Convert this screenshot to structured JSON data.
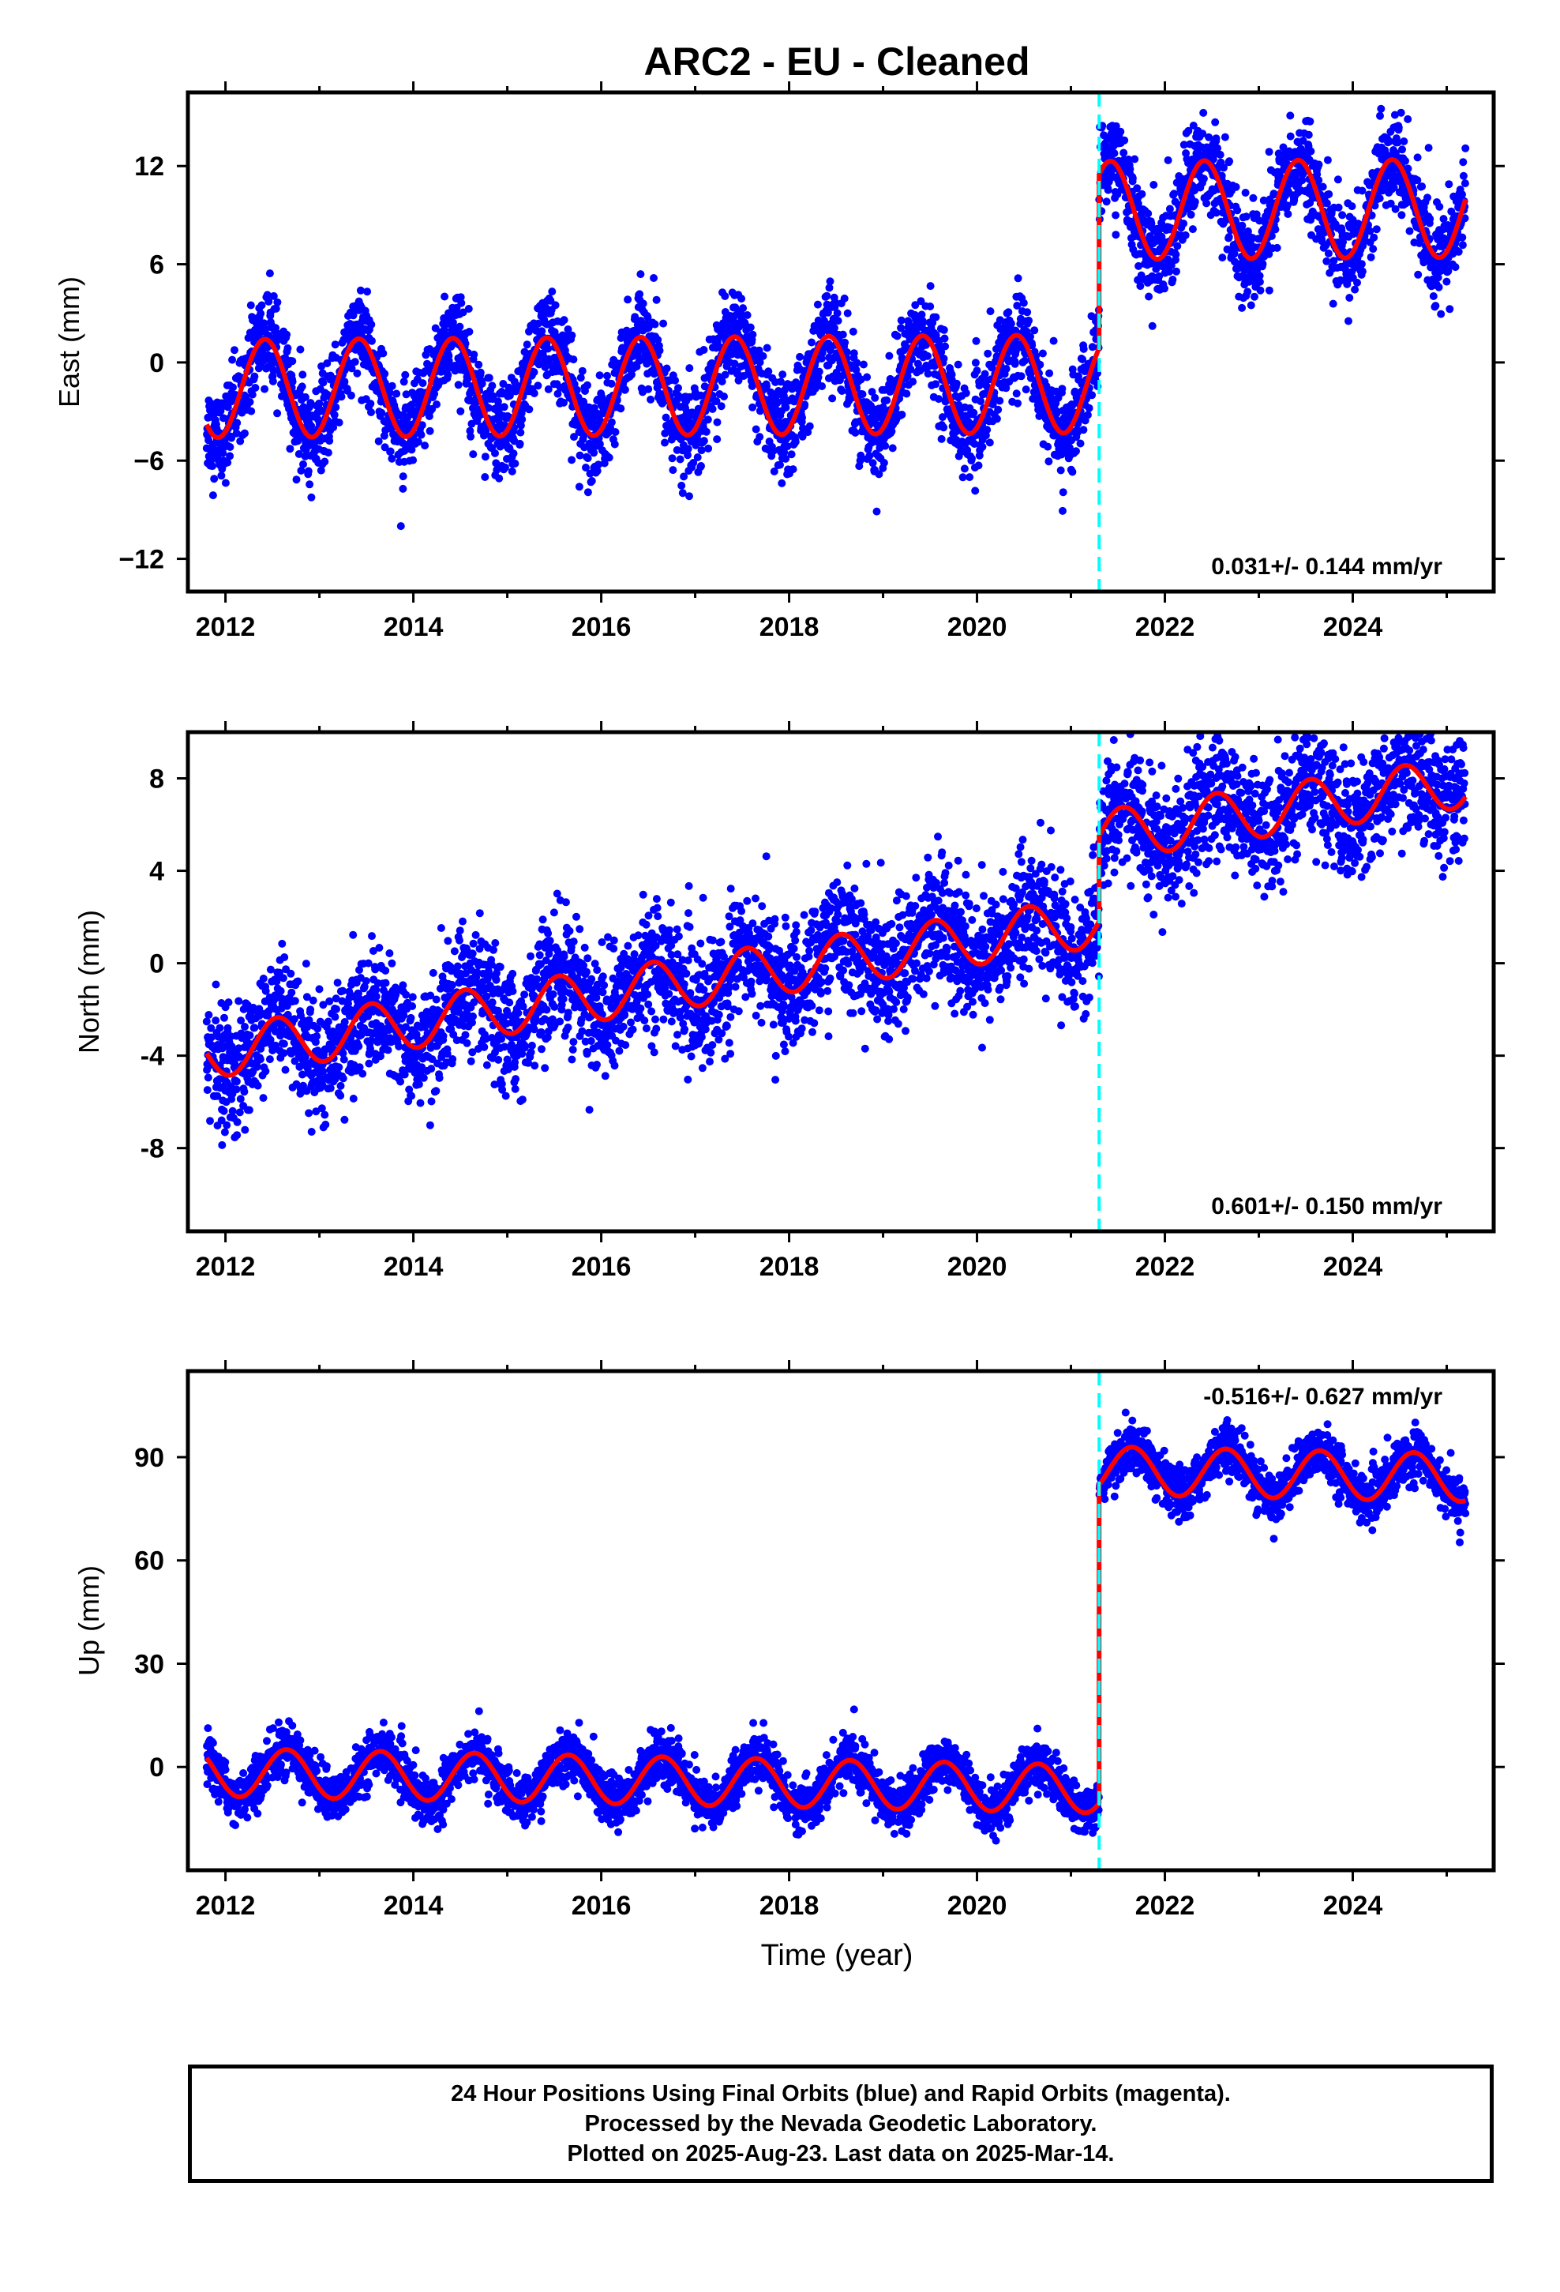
{
  "title": "ARC2  - EU - Cleaned",
  "xlabel": "Time (year)",
  "caption": [
    "24 Hour Positions Using Final Orbits (blue) and Rapid Orbits (magenta).",
    "Processed by the Nevada Geodetic Laboratory.",
    "Plotted on 2025-Aug-23. Last data on 2025-Mar-14."
  ],
  "colors": {
    "points": "#0000ff",
    "model": "#ff0000",
    "offset_marker": "#00ffff",
    "frame": "#000000"
  },
  "chart_data": [
    {
      "type": "scatter",
      "component": "east",
      "ylabel": "East (mm)",
      "rate_label": "0.031+/- 0.144 mm/yr",
      "xlim": [
        2011.6,
        2025.5
      ],
      "ylim": [
        -14,
        16.5
      ],
      "x_ticks": [
        2012,
        2014,
        2016,
        2018,
        2020,
        2022,
        2024
      ],
      "y_ticks": [
        -12,
        -6,
        0,
        6,
        12
      ],
      "y_tick_labels": [
        "−12",
        "−6",
        "0",
        "6",
        "12"
      ],
      "data_start": 2011.8,
      "data_end": 2025.2,
      "offset_epoch": 2021.3,
      "model": {
        "pre_offset": -1.6,
        "post_offset": 9.0,
        "annual_amplitude": 3.0,
        "annual_peak": 0.42,
        "semiannual_amplitude": 0,
        "rate": 0.031
      },
      "scatter_sigma": 1.4
    },
    {
      "type": "scatter",
      "component": "north",
      "ylabel": "North (mm)",
      "rate_label": "0.601+/- 0.150 mm/yr",
      "xlim": [
        2011.6,
        2025.5
      ],
      "ylim": [
        -11.6,
        10
      ],
      "x_ticks": [
        2012,
        2014,
        2016,
        2018,
        2020,
        2022,
        2024
      ],
      "y_ticks": [
        -8,
        -4,
        0,
        4,
        8
      ],
      "y_tick_labels": [
        "-8",
        "-4",
        "0",
        "4",
        "8"
      ],
      "data_start": 2011.8,
      "data_end": 2025.2,
      "offset_epoch": 2021.3,
      "model": {
        "pre_offset": -3.9,
        "post_offset": -0.2,
        "annual_amplitude": 1.1,
        "annual_peak": 0.55,
        "semiannual_amplitude": 0,
        "rate": 0.601
      },
      "scatter_sigma": 1.3
    },
    {
      "type": "scatter",
      "component": "up",
      "ylabel": "Up (mm)",
      "rate_label": "-0.516+/- 0.627 mm/yr",
      "xlim": [
        2011.6,
        2025.5
      ],
      "ylim": [
        -30,
        115
      ],
      "x_ticks": [
        2012,
        2014,
        2016,
        2018,
        2020,
        2022,
        2024
      ],
      "y_ticks": [
        0,
        30,
        60,
        90
      ],
      "y_tick_labels": [
        "0",
        "30",
        "60",
        "90"
      ],
      "data_start": 2011.8,
      "data_end": 2025.2,
      "offset_epoch": 2021.3,
      "model": {
        "pre_offset": -1.5,
        "post_offset": 91.0,
        "annual_amplitude": 7.0,
        "annual_peak": 0.65,
        "semiannual_amplitude": 0,
        "rate": -0.516
      },
      "scatter_sigma": 3.5
    }
  ]
}
